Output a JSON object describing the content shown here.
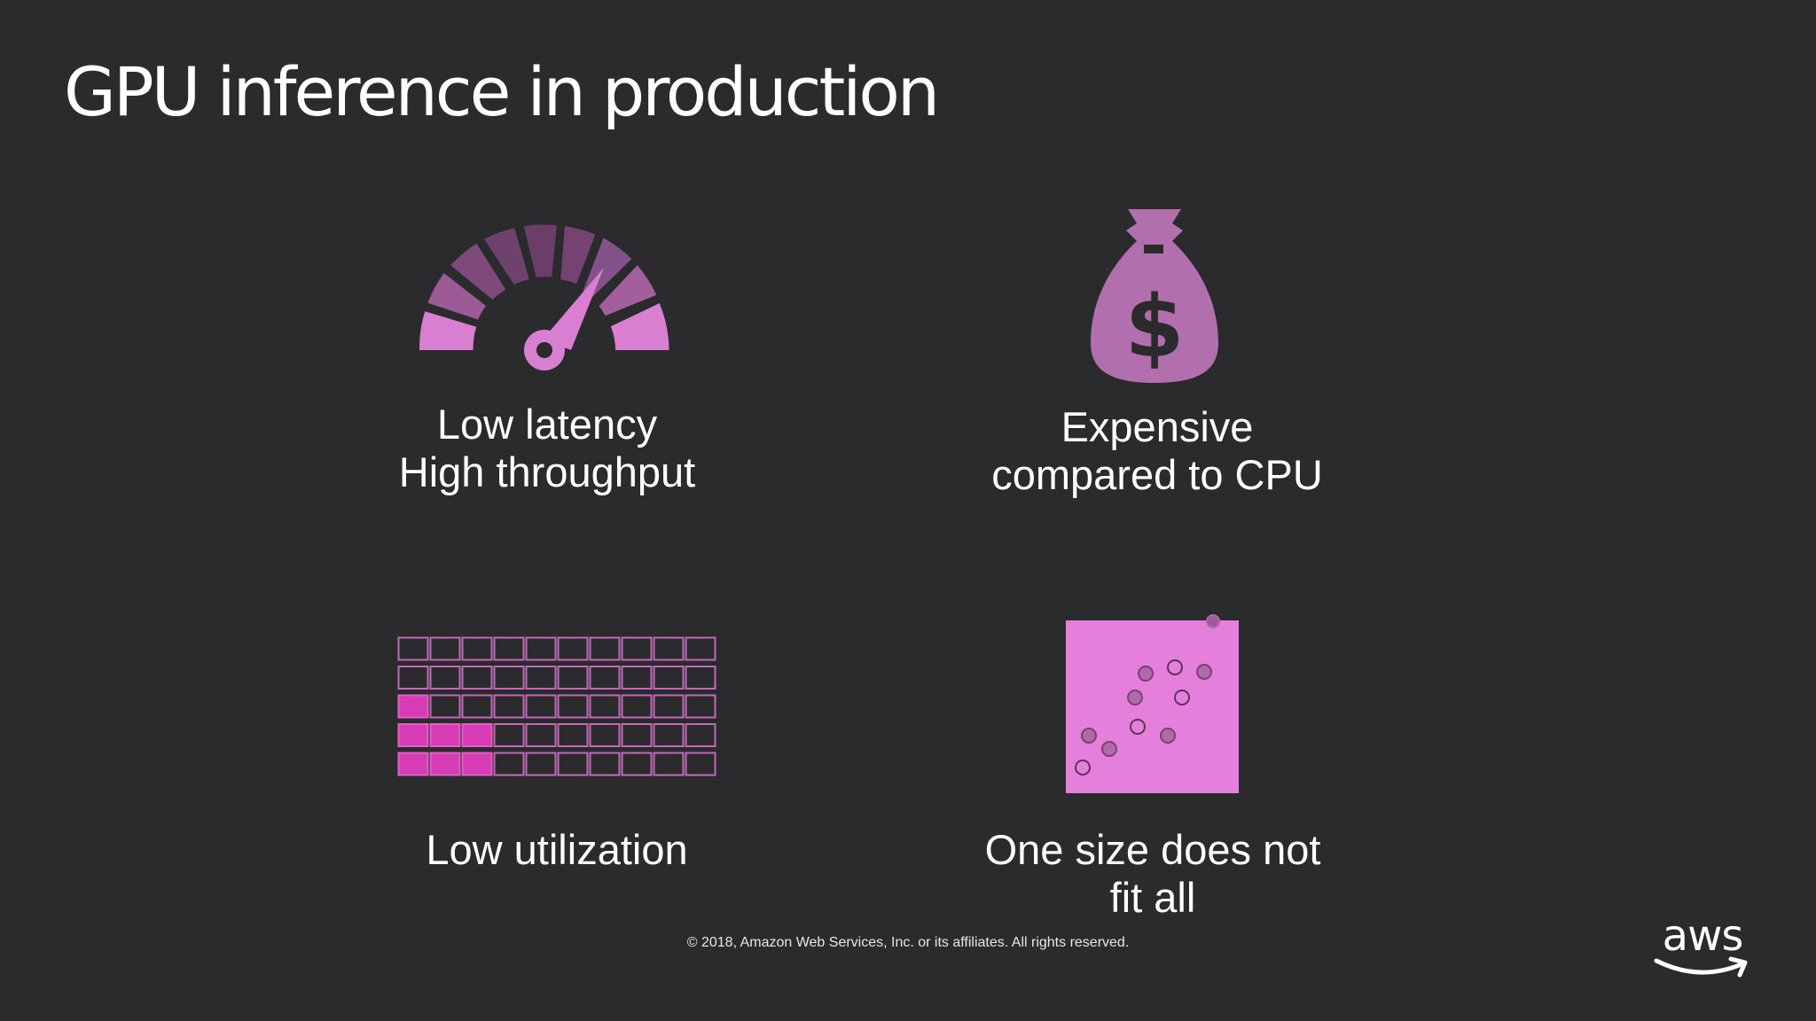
{
  "slide": {
    "title": "GPU inference in production",
    "footer": "© 2018, Amazon Web Services, Inc. or its affiliates. All rights reserved.",
    "logo_text": "aws",
    "accent_color": "#d675cb",
    "highlight_color": "#d63db4"
  },
  "panels": [
    {
      "icon": "speedometer-icon",
      "lines": [
        "Low latency",
        "High throughput"
      ]
    },
    {
      "icon": "money-bag-icon",
      "lines": [
        "Expensive",
        "compared to CPU"
      ]
    },
    {
      "icon": "utilization-grid-icon",
      "lines": [
        "Low utilization"
      ],
      "grid": {
        "rows": 5,
        "cols": 10,
        "filled_per_row": [
          0,
          0,
          1,
          3,
          3
        ]
      }
    },
    {
      "icon": "scatter-plot-icon",
      "lines": [
        "One size does not",
        "fit all"
      ]
    }
  ],
  "bag_symbol": "$"
}
